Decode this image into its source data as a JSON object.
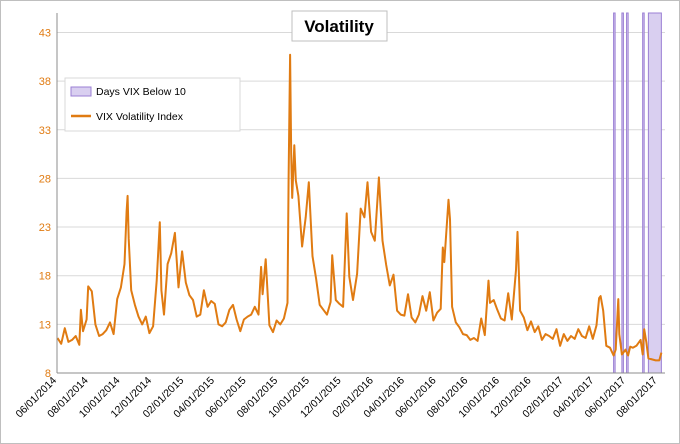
{
  "chart_data": {
    "type": "line",
    "title": "Volatility",
    "colors": {
      "line": "#e07b12",
      "band": "#9b7fd4",
      "band_fill": "#d9cff0",
      "grid": "#d9d9d9"
    },
    "y_axis": {
      "min": 8,
      "max": 45,
      "ticks": [
        8,
        13,
        18,
        23,
        28,
        33,
        38,
        43
      ],
      "tick_labels": [
        "8",
        "13",
        "18",
        "23",
        "28",
        "33",
        "38",
        "43"
      ]
    },
    "x_axis": {
      "min": "2014-06-01",
      "max": "2017-08-15",
      "ticks": [
        "2014-06-01",
        "2014-08-01",
        "2014-10-01",
        "2014-12-01",
        "2015-02-01",
        "2015-04-01",
        "2015-06-01",
        "2015-08-01",
        "2015-10-01",
        "2015-12-01",
        "2016-02-01",
        "2016-04-01",
        "2016-06-01",
        "2016-08-01",
        "2016-10-01",
        "2016-12-01",
        "2017-02-01",
        "2017-04-01",
        "2017-06-01",
        "2017-08-01"
      ],
      "tick_labels": [
        "06/01/2014",
        "08/01/2014",
        "10/01/2014",
        "12/01/2014",
        "02/01/2015",
        "04/01/2015",
        "06/01/2015",
        "08/01/2015",
        "10/01/2015",
        "12/01/2015",
        "02/01/2016",
        "04/01/2016",
        "06/01/2016",
        "08/01/2016",
        "10/01/2016",
        "12/01/2016",
        "02/01/2017",
        "04/01/2017",
        "06/01/2017",
        "08/01/2017"
      ]
    },
    "legend": {
      "placement": "top-left",
      "entries": [
        {
          "label": "Days VIX Below 10",
          "kind": "band"
        },
        {
          "label": "VIX Volatility Index",
          "kind": "line"
        }
      ]
    },
    "bands": [
      {
        "start": "2017-05-08",
        "end": "2017-05-09"
      },
      {
        "start": "2017-05-24",
        "end": "2017-05-25"
      },
      {
        "start": "2017-06-02",
        "end": "2017-06-05"
      },
      {
        "start": "2017-07-03",
        "end": "2017-07-04"
      },
      {
        "start": "2017-07-14",
        "end": "2017-08-08"
      }
    ],
    "series": [
      {
        "name": "VIX Volatility Index",
        "points": [
          [
            "2014-06-02",
            11.6
          ],
          [
            "2014-06-09",
            11.0
          ],
          [
            "2014-06-16",
            12.6
          ],
          [
            "2014-06-23",
            11.2
          ],
          [
            "2014-06-30",
            11.4
          ],
          [
            "2014-07-07",
            11.8
          ],
          [
            "2014-07-14",
            10.9
          ],
          [
            "2014-07-17",
            14.5
          ],
          [
            "2014-07-21",
            12.3
          ],
          [
            "2014-07-28",
            13.5
          ],
          [
            "2014-07-31",
            16.9
          ],
          [
            "2014-08-07",
            16.4
          ],
          [
            "2014-08-14",
            13.0
          ],
          [
            "2014-08-21",
            11.8
          ],
          [
            "2014-08-28",
            12.0
          ],
          [
            "2014-09-04",
            12.4
          ],
          [
            "2014-09-11",
            13.2
          ],
          [
            "2014-09-18",
            12.0
          ],
          [
            "2014-09-25",
            15.6
          ],
          [
            "2014-10-02",
            16.8
          ],
          [
            "2014-10-09",
            19.2
          ],
          [
            "2014-10-13",
            24.6
          ],
          [
            "2014-10-15",
            26.2
          ],
          [
            "2014-10-17",
            21.8
          ],
          [
            "2014-10-22",
            16.5
          ],
          [
            "2014-10-29",
            15.0
          ],
          [
            "2014-11-05",
            13.8
          ],
          [
            "2014-11-12",
            13.0
          ],
          [
            "2014-11-19",
            13.8
          ],
          [
            "2014-11-26",
            12.1
          ],
          [
            "2014-12-03",
            12.8
          ],
          [
            "2014-12-10",
            17.5
          ],
          [
            "2014-12-16",
            23.5
          ],
          [
            "2014-12-19",
            16.5
          ],
          [
            "2014-12-24",
            14.0
          ],
          [
            "2014-12-31",
            19.2
          ],
          [
            "2015-01-07",
            20.3
          ],
          [
            "2015-01-14",
            22.4
          ],
          [
            "2015-01-21",
            16.8
          ],
          [
            "2015-01-28",
            20.5
          ],
          [
            "2015-02-04",
            17.3
          ],
          [
            "2015-02-11",
            16.0
          ],
          [
            "2015-02-18",
            15.5
          ],
          [
            "2015-02-25",
            13.8
          ],
          [
            "2015-03-04",
            14.0
          ],
          [
            "2015-03-11",
            16.5
          ],
          [
            "2015-03-18",
            14.8
          ],
          [
            "2015-03-25",
            15.4
          ],
          [
            "2015-04-01",
            15.1
          ],
          [
            "2015-04-08",
            13.0
          ],
          [
            "2015-04-15",
            12.8
          ],
          [
            "2015-04-22",
            13.2
          ],
          [
            "2015-04-29",
            14.5
          ],
          [
            "2015-05-06",
            15.0
          ],
          [
            "2015-05-13",
            13.5
          ],
          [
            "2015-05-20",
            12.3
          ],
          [
            "2015-05-27",
            13.5
          ],
          [
            "2015-06-03",
            13.8
          ],
          [
            "2015-06-10",
            14.0
          ],
          [
            "2015-06-17",
            14.8
          ],
          [
            "2015-06-24",
            14.0
          ],
          [
            "2015-06-29",
            18.9
          ],
          [
            "2015-07-02",
            16.1
          ],
          [
            "2015-07-08",
            19.7
          ],
          [
            "2015-07-15",
            12.9
          ],
          [
            "2015-07-22",
            12.2
          ],
          [
            "2015-07-29",
            13.4
          ],
          [
            "2015-08-05",
            13.0
          ],
          [
            "2015-08-12",
            13.6
          ],
          [
            "2015-08-19",
            15.2
          ],
          [
            "2015-08-21",
            28.0
          ],
          [
            "2015-08-24",
            40.7
          ],
          [
            "2015-08-26",
            30.5
          ],
          [
            "2015-08-28",
            26.0
          ],
          [
            "2015-09-01",
            31.4
          ],
          [
            "2015-09-04",
            27.8
          ],
          [
            "2015-09-09",
            26.2
          ],
          [
            "2015-09-16",
            21.0
          ],
          [
            "2015-09-23",
            24.0
          ],
          [
            "2015-09-29",
            27.6
          ],
          [
            "2015-10-06",
            20.0
          ],
          [
            "2015-10-13",
            17.7
          ],
          [
            "2015-10-20",
            15.0
          ],
          [
            "2015-10-27",
            14.5
          ],
          [
            "2015-11-03",
            14.0
          ],
          [
            "2015-11-10",
            15.3
          ],
          [
            "2015-11-13",
            20.1
          ],
          [
            "2015-11-20",
            15.5
          ],
          [
            "2015-11-27",
            15.1
          ],
          [
            "2015-12-04",
            14.8
          ],
          [
            "2015-12-11",
            24.4
          ],
          [
            "2015-12-16",
            17.9
          ],
          [
            "2015-12-23",
            15.5
          ],
          [
            "2015-12-31",
            18.2
          ],
          [
            "2016-01-07",
            24.9
          ],
          [
            "2016-01-14",
            24.0
          ],
          [
            "2016-01-20",
            27.6
          ],
          [
            "2016-01-27",
            22.5
          ],
          [
            "2016-02-03",
            21.6
          ],
          [
            "2016-02-11",
            28.1
          ],
          [
            "2016-02-18",
            21.6
          ],
          [
            "2016-02-25",
            19.1
          ],
          [
            "2016-03-03",
            17.0
          ],
          [
            "2016-03-10",
            18.1
          ],
          [
            "2016-03-17",
            14.4
          ],
          [
            "2016-03-24",
            14.0
          ],
          [
            "2016-03-31",
            13.9
          ],
          [
            "2016-04-07",
            16.1
          ],
          [
            "2016-04-14",
            13.7
          ],
          [
            "2016-04-21",
            13.2
          ],
          [
            "2016-04-28",
            14.0
          ],
          [
            "2016-05-05",
            15.9
          ],
          [
            "2016-05-12",
            14.4
          ],
          [
            "2016-05-19",
            16.3
          ],
          [
            "2016-05-26",
            13.4
          ],
          [
            "2016-06-02",
            14.2
          ],
          [
            "2016-06-09",
            14.6
          ],
          [
            "2016-06-13",
            20.9
          ],
          [
            "2016-06-16",
            19.4
          ],
          [
            "2016-06-24",
            25.8
          ],
          [
            "2016-06-27",
            23.8
          ],
          [
            "2016-07-01",
            14.8
          ],
          [
            "2016-07-08",
            13.2
          ],
          [
            "2016-07-15",
            12.7
          ],
          [
            "2016-07-22",
            12.0
          ],
          [
            "2016-07-29",
            11.9
          ],
          [
            "2016-08-05",
            11.4
          ],
          [
            "2016-08-12",
            11.6
          ],
          [
            "2016-08-19",
            11.3
          ],
          [
            "2016-08-26",
            13.6
          ],
          [
            "2016-09-02",
            11.9
          ],
          [
            "2016-09-09",
            17.5
          ],
          [
            "2016-09-12",
            15.2
          ],
          [
            "2016-09-19",
            15.5
          ],
          [
            "2016-09-26",
            14.5
          ],
          [
            "2016-10-03",
            13.6
          ],
          [
            "2016-10-10",
            13.4
          ],
          [
            "2016-10-17",
            16.2
          ],
          [
            "2016-10-24",
            13.5
          ],
          [
            "2016-11-01",
            18.6
          ],
          [
            "2016-11-04",
            22.5
          ],
          [
            "2016-11-09",
            14.4
          ],
          [
            "2016-11-16",
            13.7
          ],
          [
            "2016-11-23",
            12.4
          ],
          [
            "2016-11-30",
            13.3
          ],
          [
            "2016-12-07",
            12.2
          ],
          [
            "2016-12-14",
            12.8
          ],
          [
            "2016-12-21",
            11.4
          ],
          [
            "2016-12-28",
            12.0
          ],
          [
            "2017-01-04",
            11.8
          ],
          [
            "2017-01-11",
            11.5
          ],
          [
            "2017-01-18",
            12.5
          ],
          [
            "2017-01-25",
            10.8
          ],
          [
            "2017-02-01",
            12.0
          ],
          [
            "2017-02-08",
            11.3
          ],
          [
            "2017-02-15",
            11.8
          ],
          [
            "2017-02-22",
            11.5
          ],
          [
            "2017-03-01",
            12.5
          ],
          [
            "2017-03-08",
            11.8
          ],
          [
            "2017-03-15",
            11.6
          ],
          [
            "2017-03-22",
            12.8
          ],
          [
            "2017-03-29",
            11.5
          ],
          [
            "2017-04-05",
            12.9
          ],
          [
            "2017-04-10",
            15.7
          ],
          [
            "2017-04-13",
            15.9
          ],
          [
            "2017-04-18",
            14.4
          ],
          [
            "2017-04-24",
            10.8
          ],
          [
            "2017-05-01",
            10.6
          ],
          [
            "2017-05-08",
            9.8
          ],
          [
            "2017-05-12",
            10.4
          ],
          [
            "2017-05-17",
            15.6
          ],
          [
            "2017-05-19",
            12.0
          ],
          [
            "2017-05-24",
            9.9
          ],
          [
            "2017-05-31",
            10.4
          ],
          [
            "2017-06-05",
            9.8
          ],
          [
            "2017-06-09",
            10.7
          ],
          [
            "2017-06-14",
            10.6
          ],
          [
            "2017-06-21",
            10.8
          ],
          [
            "2017-06-29",
            11.4
          ],
          [
            "2017-07-03",
            9.9
          ],
          [
            "2017-07-06",
            12.5
          ],
          [
            "2017-07-10",
            11.2
          ],
          [
            "2017-07-14",
            9.5
          ],
          [
            "2017-07-21",
            9.4
          ],
          [
            "2017-07-28",
            9.3
          ],
          [
            "2017-08-04",
            9.3
          ],
          [
            "2017-08-08",
            10.1
          ]
        ]
      }
    ]
  }
}
